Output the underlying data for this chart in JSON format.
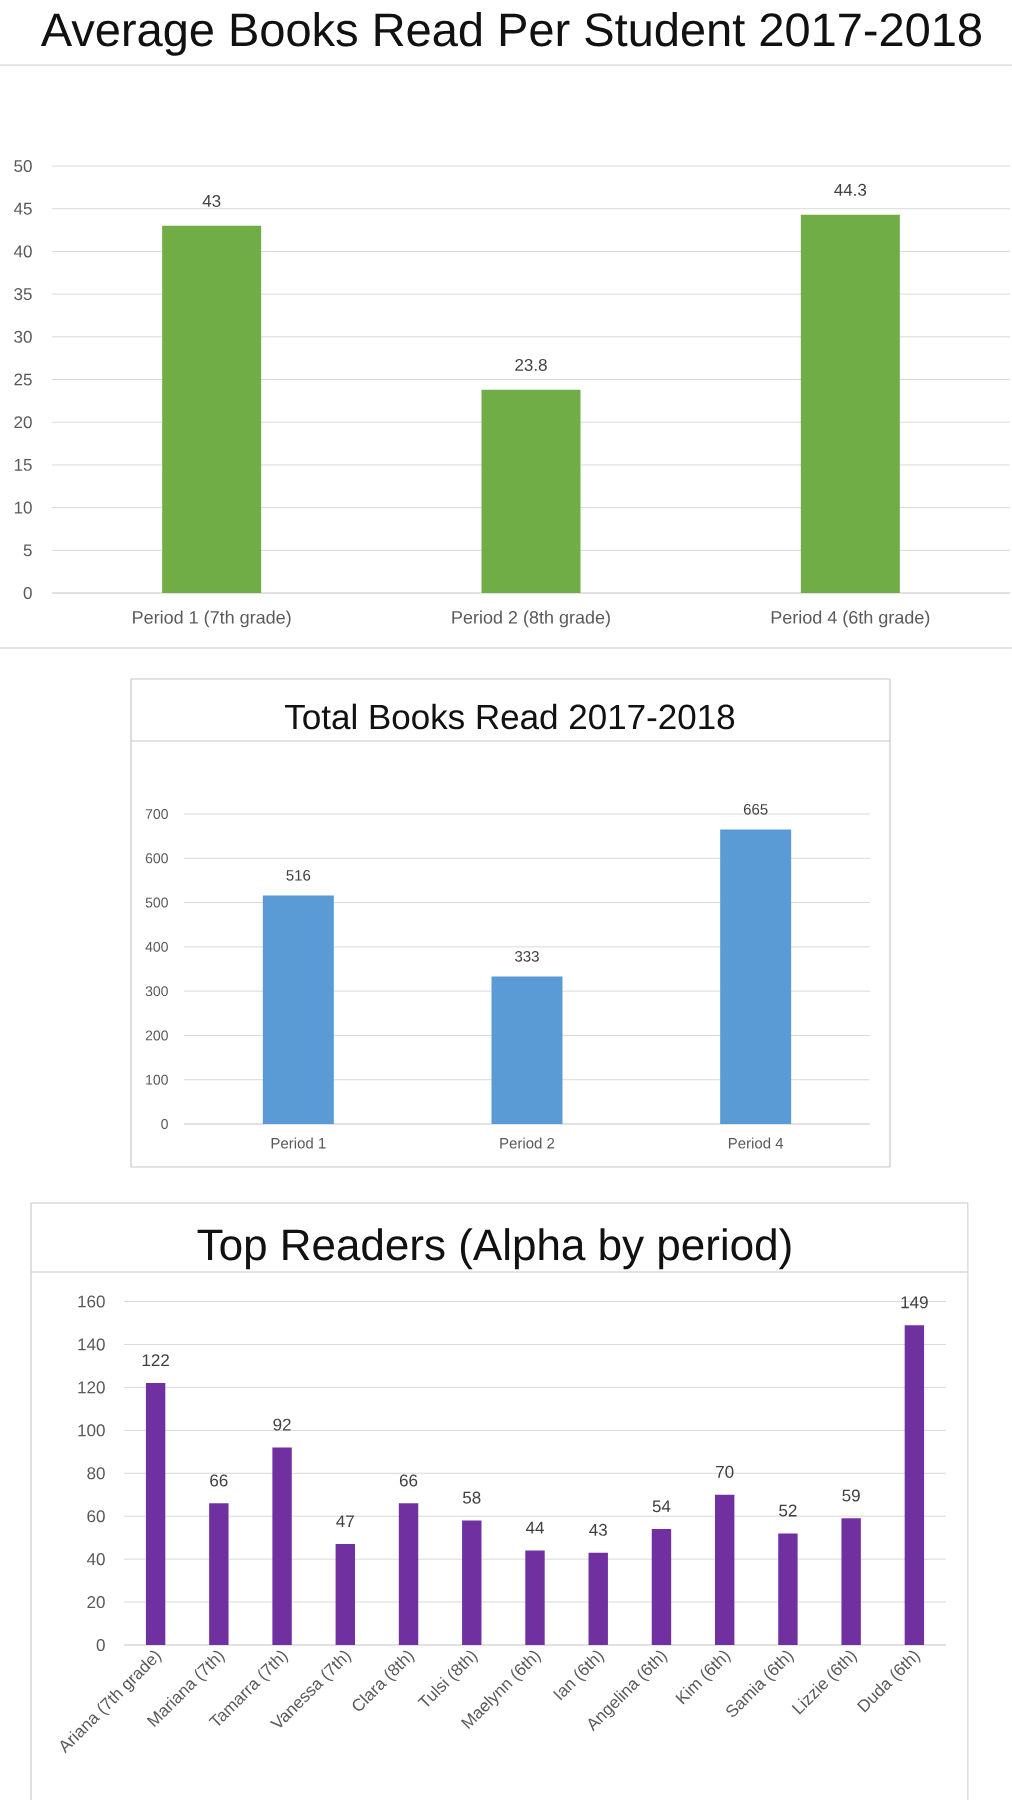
{
  "chart_data": [
    {
      "type": "bar",
      "title": "Average Books Read Per Student 2017-2018",
      "categories": [
        "Period 1 (7th grade)",
        "Period 2 (8th grade)",
        "Period 4 (6th grade)"
      ],
      "values": [
        43,
        23.8,
        44.3
      ],
      "color": "#70ad47",
      "ylim": [
        0,
        50
      ],
      "yticks": [
        0,
        5,
        10,
        15,
        20,
        25,
        30,
        35,
        40,
        45,
        50
      ],
      "grid": "y",
      "data_labels": true
    },
    {
      "type": "bar",
      "title": "Total Books Read 2017-2018",
      "categories": [
        "Period 1",
        "Period 2",
        "Period 4"
      ],
      "values": [
        516,
        333,
        665
      ],
      "color": "#5b9bd5",
      "ylim": [
        0,
        700
      ],
      "yticks": [
        0,
        100,
        200,
        300,
        400,
        500,
        600,
        700
      ],
      "grid": "y",
      "data_labels": true
    },
    {
      "type": "bar",
      "title": "Top Readers (Alpha by period)",
      "categories": [
        "Ariana (7th grade)",
        "Mariana (7th)",
        "Tamarra (7th)",
        "Vanessa (7th)",
        "Clara (8th)",
        "Tulsi (8th)",
        "Maelynn (6th)",
        "Ian (6th)",
        "Angelina (6th)",
        "Kim (6th)",
        "Samia (6th)",
        "Lizzie (6th)",
        "Duda (6th)"
      ],
      "values": [
        122,
        66,
        92,
        47,
        66,
        58,
        44,
        43,
        54,
        70,
        52,
        59,
        149
      ],
      "color": "#7030a0",
      "ylim": [
        0,
        160
      ],
      "yticks": [
        0,
        20,
        40,
        60,
        80,
        100,
        120,
        140,
        160
      ],
      "grid": "y",
      "data_labels": true
    }
  ]
}
